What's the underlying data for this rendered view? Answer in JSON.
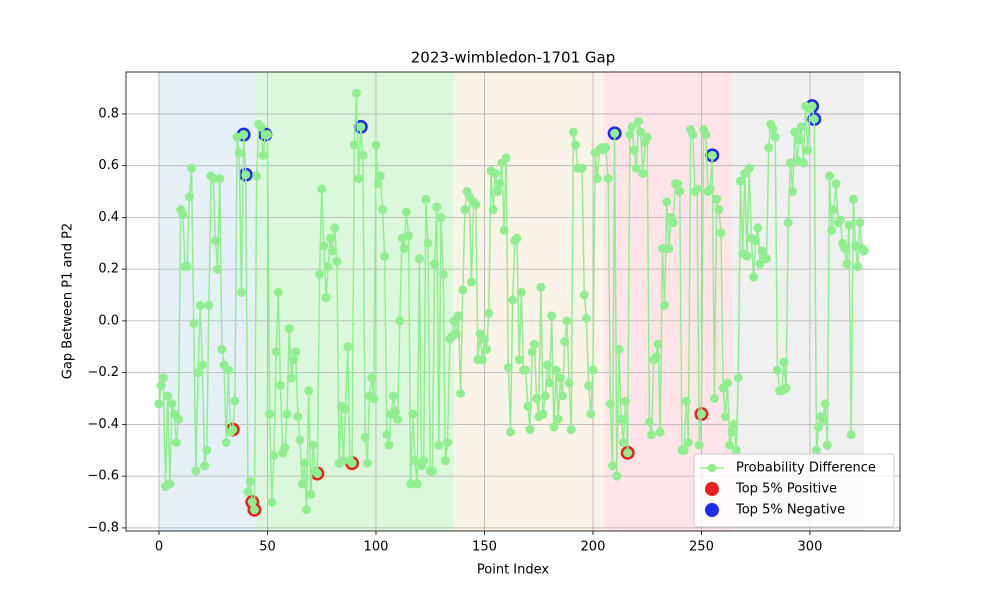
{
  "chart_data": {
    "type": "line",
    "title": "2023-wimbledon-1701 Gap",
    "xlabel": "Point Index",
    "ylabel": "Gap Between P1 and P2",
    "xlim": [
      -15.2,
      341.5
    ],
    "ylim": [
      -0.812,
      0.962
    ],
    "xticks": [
      0,
      50,
      100,
      150,
      200,
      250,
      300
    ],
    "yticks": [
      {
        "value": -0.8,
        "label": "−0.8"
      },
      {
        "value": -0.6,
        "label": "−0.6"
      },
      {
        "value": -0.4,
        "label": "−0.4"
      },
      {
        "value": -0.2,
        "label": "−0.2"
      },
      {
        "value": 0,
        "label": "0.0"
      },
      0.2,
      0.4,
      0.6,
      0.8
    ],
    "grid": true,
    "legend": "lower right",
    "regions": [
      {
        "start": 0,
        "end": 45,
        "color": "#e5f1f7"
      },
      {
        "start": 45,
        "end": 136,
        "color": "#dcf8dc"
      },
      {
        "start": 136,
        "end": 205,
        "color": "#faf3e7"
      },
      {
        "start": 205,
        "end": 264,
        "color": "#ffe5e9"
      },
      {
        "start": 264,
        "end": 325,
        "color": "#f0f0f0"
      }
    ],
    "series": [
      {
        "name": "Probability Difference",
        "color": "#90ee90",
        "values": [
          -0.32,
          -0.25,
          -0.22,
          -0.64,
          -0.29,
          -0.63,
          -0.32,
          -0.36,
          -0.47,
          -0.38,
          0.43,
          0.41,
          0.21,
          0.21,
          0.48,
          0.59,
          -0.01,
          -0.58,
          -0.2,
          0.06,
          -0.17,
          -0.56,
          -0.5,
          0.06,
          0.56,
          0.55,
          0.31,
          0.2,
          0.55,
          -0.11,
          -0.17,
          -0.47,
          -0.19,
          -0.43,
          -0.42,
          -0.31,
          0.71,
          0.65,
          0.11,
          0.72,
          0.565,
          -0.66,
          -0.62,
          -0.7,
          -0.73,
          0.56,
          0.76,
          0.75,
          0.64,
          0.72,
          0.72,
          -0.36,
          -0.7,
          -0.52,
          -0.12,
          0.11,
          -0.25,
          -0.51,
          -0.49,
          -0.36,
          -0.03,
          -0.22,
          -0.15,
          -0.12,
          -0.37,
          -0.46,
          -0.63,
          -0.55,
          -0.73,
          -0.27,
          -0.67,
          -0.48,
          -0.58,
          -0.59,
          0.18,
          0.51,
          0.29,
          0.09,
          0.21,
          0.32,
          0.27,
          0.36,
          0.23,
          -0.55,
          -0.33,
          -0.54,
          -0.34,
          -0.1,
          -0.54,
          -0.55,
          0.68,
          0.88,
          0.55,
          0.75,
          0.64,
          -0.45,
          -0.55,
          -0.29,
          -0.22,
          -0.3,
          0.68,
          0.53,
          0.56,
          0.43,
          0.25,
          -0.44,
          -0.48,
          -0.36,
          -0.29,
          -0.35,
          -0.38,
          0,
          0.32,
          0.28,
          0.42,
          0.33,
          -0.63,
          -0.36,
          -0.54,
          -0.63,
          0.24,
          -0.56,
          -0.54,
          0.47,
          0.3,
          -0.58,
          -0.58,
          0.22,
          0.44,
          -0.48,
          0.4,
          0.18,
          -0.54,
          -0.47,
          -0.07,
          -0.06,
          0,
          -0.05,
          0.02,
          -0.28,
          0.12,
          0.43,
          0.5,
          0.48,
          0.15,
          0.46,
          0.45,
          -0.15,
          -0.05,
          -0.15,
          -0.07,
          -0.11,
          0.03,
          0.58,
          0.43,
          0.57,
          0.5,
          0.53,
          0.61,
          0.35,
          0.63,
          -0.18,
          -0.43,
          0.08,
          0.31,
          0.32,
          -0.15,
          0.11,
          -0.19,
          -0.19,
          -0.33,
          -0.42,
          -0.12,
          -0.09,
          -0.3,
          -0.37,
          0.13,
          -0.36,
          -0.29,
          -0.17,
          -0.24,
          0.02,
          -0.41,
          -0.19,
          -0.38,
          -0.22,
          -0.29,
          -0.08,
          0,
          -0.24,
          -0.42,
          0.73,
          0.68,
          0.59,
          0.59,
          0.59,
          0.1,
          0.01,
          -0.25,
          -0.36,
          -0.19,
          0.65,
          0.55,
          0.66,
          0.67,
          0.66,
          0.67,
          0.55,
          -0.32,
          -0.56,
          0.725,
          -0.6,
          -0.11,
          -0.38,
          -0.47,
          -0.31,
          -0.51,
          0.72,
          0.75,
          0.66,
          0.59,
          0.77,
          0.73,
          0.57,
          0.69,
          0.71,
          -0.39,
          -0.44,
          -0.15,
          -0.14,
          -0.09,
          -0.43,
          0.28,
          0.06,
          0.46,
          0.28,
          0.4,
          0.38,
          0.53,
          0.53,
          0.5,
          -0.5,
          -0.5,
          -0.31,
          -0.47,
          0.74,
          0.72,
          0.5,
          0.51,
          -0.48,
          -0.36,
          0.74,
          0.72,
          0.5,
          0.51,
          0.64,
          -0.3,
          0.47,
          0.43,
          0.34,
          -0.26,
          -0.37,
          -0.24,
          -0.48,
          -0.43,
          -0.4,
          -0.5,
          -0.22,
          0.54,
          0.26,
          0.57,
          0.25,
          0.59,
          0.32,
          0.17,
          0.31,
          0.36,
          0.22,
          0.27,
          0.24,
          0.24,
          0.67,
          0.76,
          0.74,
          0.71,
          -0.19,
          -0.27,
          -0.27,
          -0.16,
          -0.26,
          0.38,
          0.61,
          0.5,
          0.73,
          0.62,
          0.7,
          0.75,
          0.61,
          0.83,
          0.66,
          0.82,
          0.83,
          0.78,
          -0.5,
          -0.41,
          -0.37,
          -0.38,
          -0.32,
          -0.48,
          0.56,
          0.35,
          0.43,
          0.53,
          0.38,
          0.39,
          0.3,
          0.28,
          0.22,
          0.37,
          -0.44,
          0.47,
          0.29,
          0.21,
          0.38,
          0.28,
          0.27
        ]
      },
      {
        "name": "Top 5% Positive",
        "color": "#e8231f",
        "x": [
          34,
          43,
          44,
          73,
          89,
          216,
          250
        ],
        "values": [
          -0.42,
          -0.7,
          -0.73,
          -0.59,
          -0.55,
          -0.51,
          -0.36
        ]
      },
      {
        "name": "Top 5% Negative",
        "color": "#1f2de8",
        "x": [
          39,
          40,
          49,
          93,
          210,
          255,
          301,
          302
        ],
        "values": [
          0.72,
          0.565,
          0.72,
          0.75,
          0.725,
          0.64,
          0.83,
          0.78
        ]
      }
    ]
  }
}
